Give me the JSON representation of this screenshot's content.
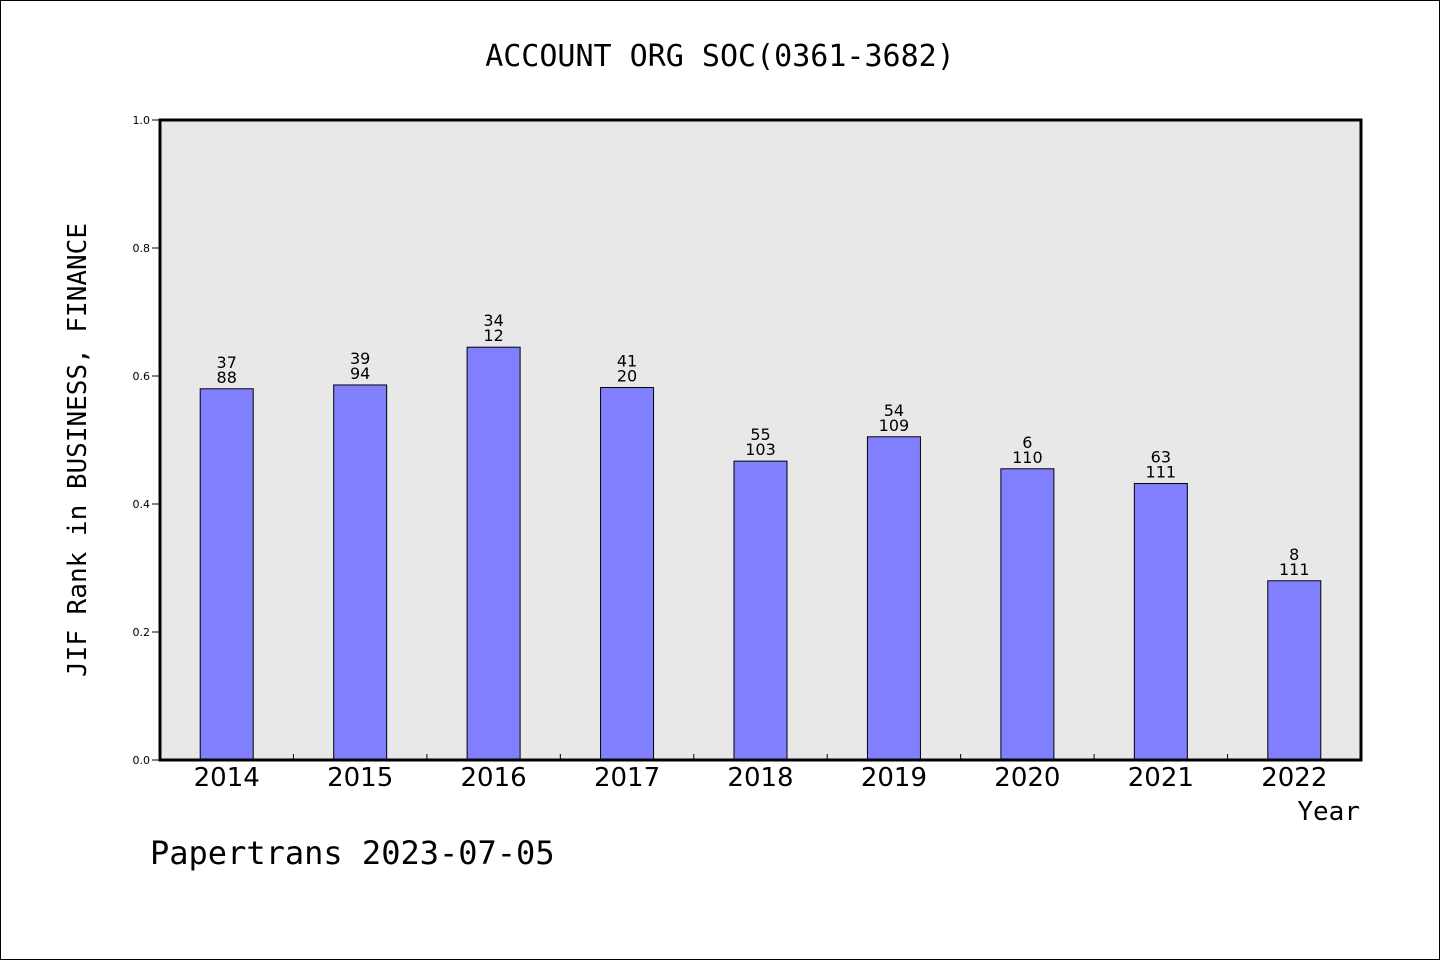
{
  "chart_data": {
    "type": "bar",
    "title": "ACCOUNT ORG SOC(0361-3682)",
    "xlabel": "Year",
    "ylabel": "JIF Rank in BUSINESS, FINANCE",
    "ylim": [
      0,
      1.0
    ],
    "yticks": [
      "0.0",
      "0.2",
      "0.4",
      "0.6",
      "0.8",
      "1.0"
    ],
    "categories": [
      "2014",
      "2015",
      "2016",
      "2017",
      "2018",
      "2019",
      "2020",
      "2021",
      "2022"
    ],
    "values": [
      0.58,
      0.586,
      0.645,
      0.582,
      0.467,
      0.505,
      0.455,
      0.432,
      0.28
    ],
    "labels_top": [
      "37",
      "39",
      "34",
      "41",
      "55",
      "54",
      "6",
      "63",
      "8"
    ],
    "labels_bottom": [
      "88",
      "94",
      "12",
      "20",
      "103",
      "109",
      "110",
      "111",
      "111"
    ],
    "grid": false,
    "colors": {
      "bar": "#8080ff",
      "plot_bg": "#e8e8e8"
    }
  },
  "footer": "Papertrans 2023-07-05"
}
